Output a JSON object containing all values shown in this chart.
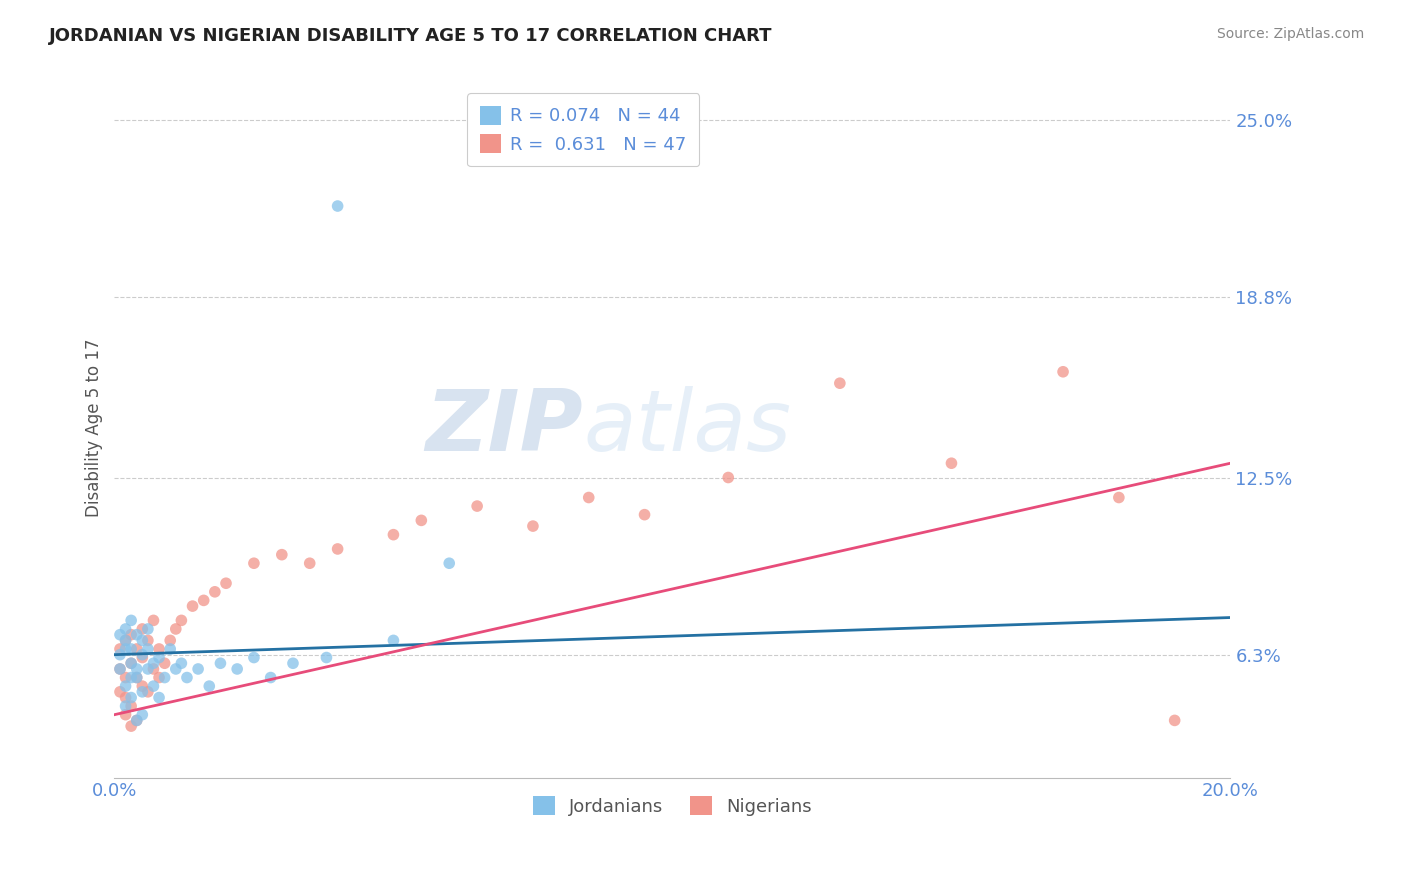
{
  "title": "JORDANIAN VS NIGERIAN DISABILITY AGE 5 TO 17 CORRELATION CHART",
  "source": "Source: ZipAtlas.com",
  "ylabel": "Disability Age 5 to 17",
  "ytick_labels": [
    "6.3%",
    "12.5%",
    "18.8%",
    "25.0%"
  ],
  "ytick_values": [
    0.063,
    0.125,
    0.188,
    0.25
  ],
  "xlim": [
    0.0,
    0.2
  ],
  "ylim": [
    0.02,
    0.265
  ],
  "legend_r1": "R = 0.074",
  "legend_n1": "N = 44",
  "legend_r2": "R = 0.631",
  "legend_n2": "N = 47",
  "color_jordanian": "#85c1e9",
  "color_nigerian": "#f1948a",
  "color_line_jordanian": "#2471a3",
  "color_line_nigerian": "#e74c7a",
  "color_axis_labels": "#5b8dd9",
  "watermark_zip": "ZIP",
  "watermark_atlas": "atlas",
  "jordanian_x": [
    0.001,
    0.001,
    0.001,
    0.002,
    0.002,
    0.002,
    0.002,
    0.002,
    0.003,
    0.003,
    0.003,
    0.003,
    0.003,
    0.004,
    0.004,
    0.004,
    0.004,
    0.005,
    0.005,
    0.005,
    0.005,
    0.006,
    0.006,
    0.006,
    0.007,
    0.007,
    0.008,
    0.008,
    0.009,
    0.01,
    0.011,
    0.012,
    0.013,
    0.015,
    0.017,
    0.019,
    0.022,
    0.025,
    0.028,
    0.032,
    0.038,
    0.05,
    0.06,
    0.04
  ],
  "jordanian_y": [
    0.063,
    0.058,
    0.07,
    0.052,
    0.065,
    0.072,
    0.045,
    0.068,
    0.055,
    0.06,
    0.075,
    0.048,
    0.065,
    0.04,
    0.058,
    0.07,
    0.055,
    0.05,
    0.063,
    0.068,
    0.042,
    0.058,
    0.065,
    0.072,
    0.052,
    0.06,
    0.048,
    0.062,
    0.055,
    0.065,
    0.058,
    0.06,
    0.055,
    0.058,
    0.052,
    0.06,
    0.058,
    0.062,
    0.055,
    0.06,
    0.062,
    0.068,
    0.095,
    0.22
  ],
  "nigerian_x": [
    0.001,
    0.001,
    0.001,
    0.002,
    0.002,
    0.002,
    0.002,
    0.003,
    0.003,
    0.003,
    0.003,
    0.004,
    0.004,
    0.004,
    0.005,
    0.005,
    0.005,
    0.006,
    0.006,
    0.007,
    0.007,
    0.008,
    0.008,
    0.009,
    0.01,
    0.011,
    0.012,
    0.014,
    0.016,
    0.018,
    0.02,
    0.025,
    0.03,
    0.035,
    0.04,
    0.05,
    0.055,
    0.065,
    0.075,
    0.085,
    0.095,
    0.11,
    0.13,
    0.15,
    0.17,
    0.18,
    0.19
  ],
  "nigerian_y": [
    0.058,
    0.05,
    0.065,
    0.042,
    0.055,
    0.068,
    0.048,
    0.045,
    0.06,
    0.07,
    0.038,
    0.055,
    0.065,
    0.04,
    0.052,
    0.062,
    0.072,
    0.05,
    0.068,
    0.058,
    0.075,
    0.055,
    0.065,
    0.06,
    0.068,
    0.072,
    0.075,
    0.08,
    0.082,
    0.085,
    0.088,
    0.095,
    0.098,
    0.095,
    0.1,
    0.105,
    0.11,
    0.115,
    0.108,
    0.118,
    0.112,
    0.125,
    0.158,
    0.13,
    0.162,
    0.118,
    0.04
  ],
  "background_color": "#ffffff",
  "grid_color": "#cccccc",
  "grid_style": "--",
  "jordanian_line_start_y": 0.063,
  "jordanian_line_end_y": 0.076,
  "nigerian_line_start_y": 0.042,
  "nigerian_line_end_y": 0.13
}
